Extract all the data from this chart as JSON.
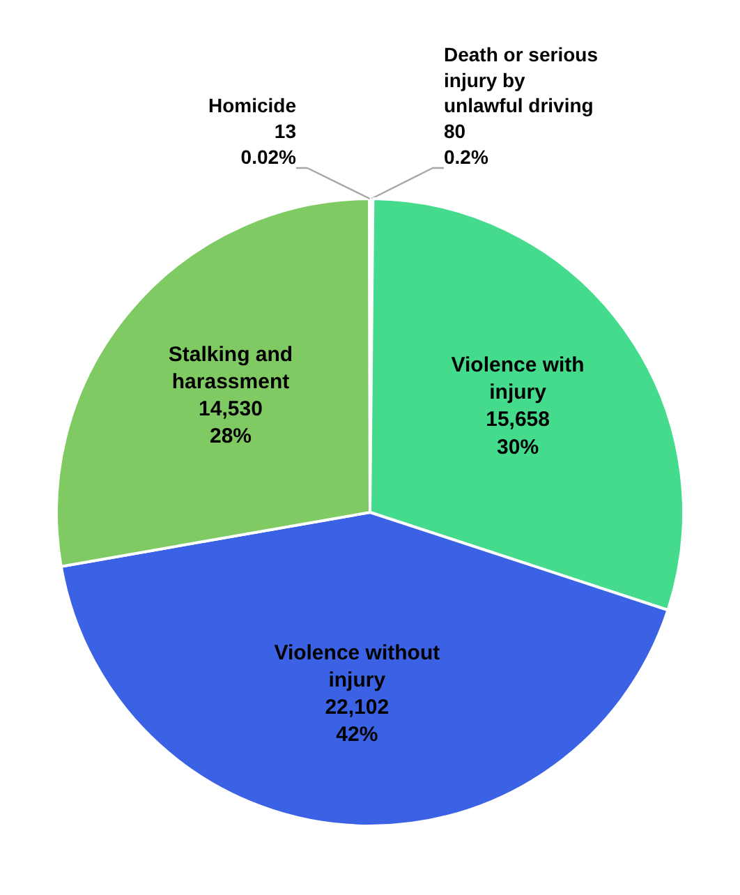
{
  "chart_data": {
    "type": "pie",
    "categories": [
      "Death or serious injury by unlawful driving",
      "Violence with injury",
      "Violence without injury",
      "Stalking and harassment",
      "Homicide"
    ],
    "values": [
      80,
      15658,
      22102,
      14530,
      13
    ],
    "value_labels": [
      "80\n0.2%",
      "15,658\n30%",
      "22,102\n42%",
      "14,530\n28%",
      "13\n0.02%"
    ],
    "colors": [
      "#2f4f9f",
      "#44dc8c",
      "#3b62e4",
      "#7fca63",
      "#c0392b"
    ]
  }
}
